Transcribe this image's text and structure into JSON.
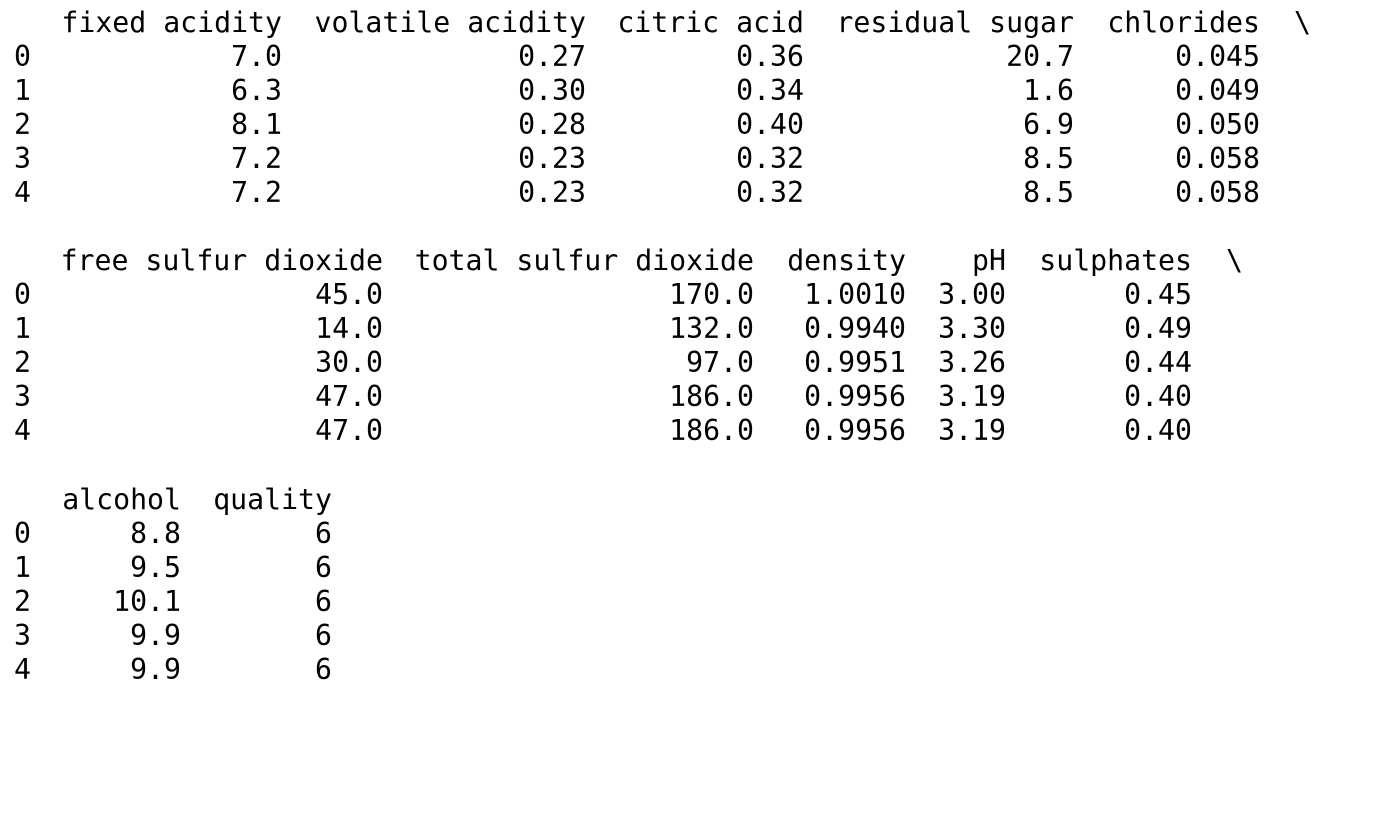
{
  "output": {
    "continuation_marker": "\\",
    "blocks": [
      {
        "headers": [
          "fixed acidity",
          "volatile acidity",
          "citric acid",
          "residual sugar",
          "chlorides"
        ],
        "rows": [
          {
            "index": "0",
            "cells": [
              "7.0",
              "0.27",
              "0.36",
              "20.7",
              "0.045"
            ]
          },
          {
            "index": "1",
            "cells": [
              "6.3",
              "0.30",
              "0.34",
              "1.6",
              "0.049"
            ]
          },
          {
            "index": "2",
            "cells": [
              "8.1",
              "0.28",
              "0.40",
              "6.9",
              "0.050"
            ]
          },
          {
            "index": "3",
            "cells": [
              "7.2",
              "0.23",
              "0.32",
              "8.5",
              "0.058"
            ]
          },
          {
            "index": "4",
            "cells": [
              "7.2",
              "0.23",
              "0.32",
              "8.5",
              "0.058"
            ]
          }
        ]
      },
      {
        "headers": [
          "free sulfur dioxide",
          "total sulfur dioxide",
          "density",
          "pH",
          "sulphates"
        ],
        "rows": [
          {
            "index": "0",
            "cells": [
              "45.0",
              "170.0",
              "1.0010",
              "3.00",
              "0.45"
            ]
          },
          {
            "index": "1",
            "cells": [
              "14.0",
              "132.0",
              "0.9940",
              "3.30",
              "0.49"
            ]
          },
          {
            "index": "2",
            "cells": [
              "30.0",
              "97.0",
              "0.9951",
              "3.26",
              "0.44"
            ]
          },
          {
            "index": "3",
            "cells": [
              "47.0",
              "186.0",
              "0.9956",
              "3.19",
              "0.40"
            ]
          },
          {
            "index": "4",
            "cells": [
              "47.0",
              "186.0",
              "0.9956",
              "3.19",
              "0.40"
            ]
          }
        ]
      },
      {
        "headers": [
          "alcohol",
          "quality"
        ],
        "rows": [
          {
            "index": "0",
            "cells": [
              "8.8",
              "6"
            ]
          },
          {
            "index": "1",
            "cells": [
              "9.5",
              "6"
            ]
          },
          {
            "index": "2",
            "cells": [
              "10.1",
              "6"
            ]
          },
          {
            "index": "3",
            "cells": [
              "9.9",
              "6"
            ]
          },
          {
            "index": "4",
            "cells": [
              "9.9",
              "6"
            ]
          }
        ]
      }
    ]
  }
}
